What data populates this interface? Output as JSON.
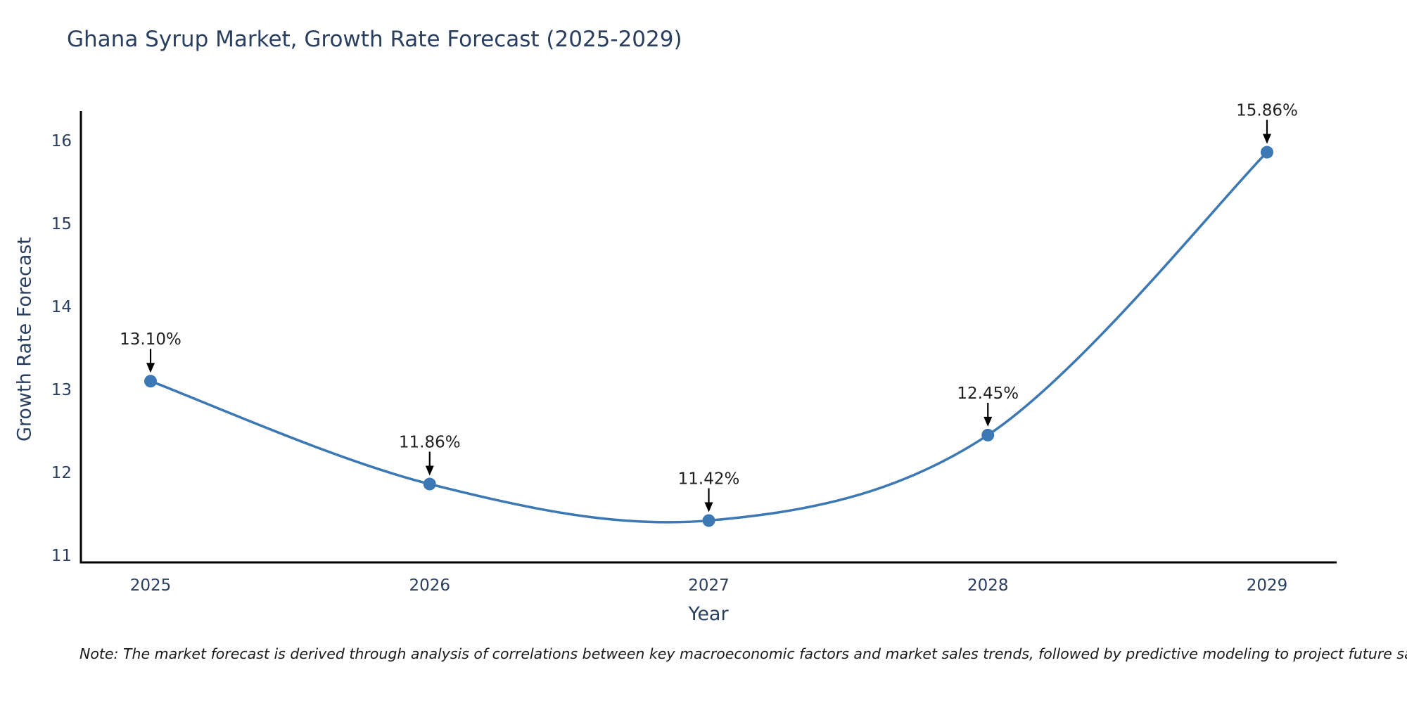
{
  "title": "Ghana Syrup Market, Growth Rate Forecast (2025-2029)",
  "axes": {
    "x_label": "Year",
    "y_label": "Growth Rate Forecast",
    "x_tick_labels": [
      "2025",
      "2026",
      "2027",
      "2028",
      "2029"
    ],
    "y_tick_labels": [
      "11",
      "12",
      "13",
      "14",
      "15",
      "16"
    ]
  },
  "note": "Note: The market forecast is derived through analysis of correlations between key macroeconomic factors and market sales trends, followed by predictive modeling to project future sales",
  "colors": {
    "line": "#3c78b4",
    "marker": "#3c78b4",
    "axis_line": "#000000",
    "title_text": "#2a3f5f",
    "tick_text": "#2a3f5f",
    "annotation_text": "#1f1f1f",
    "arrow": "#000000",
    "background": "#ffffff"
  },
  "chart_data": {
    "type": "line",
    "title": "Ghana Syrup Market, Growth Rate Forecast (2025-2029)",
    "xlabel": "Year",
    "ylabel": "Growth Rate Forecast",
    "x": [
      2025,
      2026,
      2027,
      2028,
      2029
    ],
    "values": [
      13.1,
      11.86,
      11.42,
      12.45,
      15.86
    ],
    "point_labels": [
      "13.10%",
      "11.86%",
      "11.42%",
      "12.45%",
      "15.86%"
    ],
    "y_ticks": [
      11,
      12,
      13,
      14,
      15,
      16
    ],
    "ylim": [
      10.83,
      16.42
    ],
    "curve": "spline",
    "grid": false,
    "legend": "none",
    "annotations": "value labels with downward arrows above each point"
  }
}
